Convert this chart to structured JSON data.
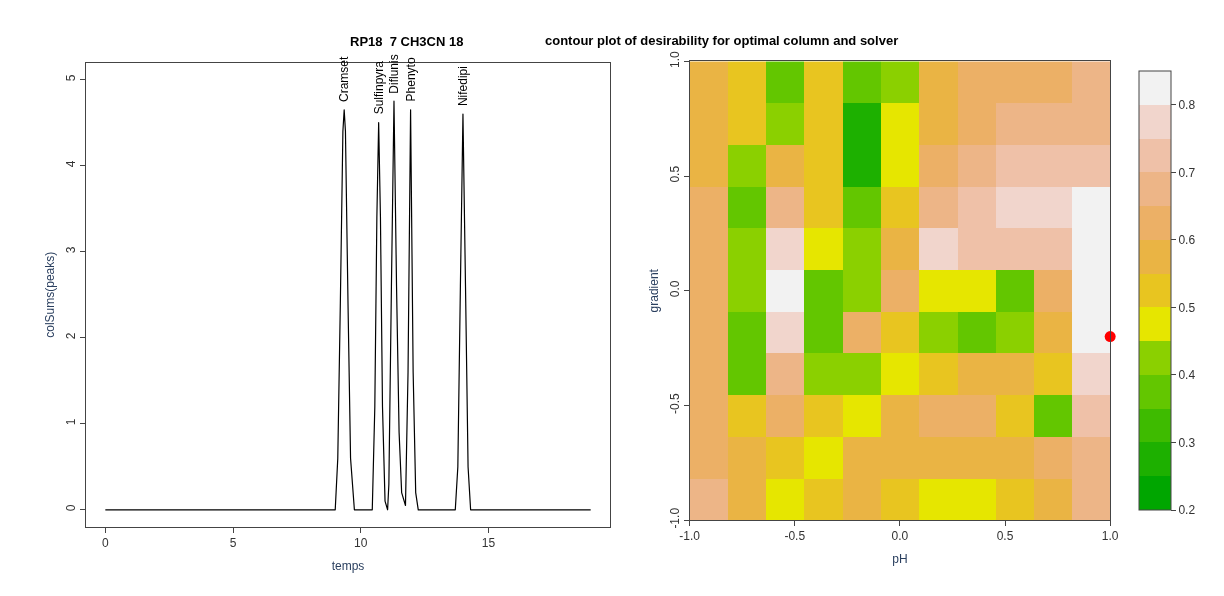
{
  "chart_data": [
    {
      "type": "line",
      "title": "RP18  7 CH3CN 18",
      "xlabel": "temps",
      "ylabel": "colSums(peaks)",
      "x": [
        0,
        9.0,
        9.1,
        9.2,
        9.3,
        9.35,
        9.4,
        9.5,
        9.6,
        9.75,
        10.45,
        10.55,
        10.63,
        10.7,
        10.77,
        10.85,
        10.95,
        11.05,
        11.1,
        11.2,
        11.3,
        11.4,
        11.5,
        11.6,
        11.75,
        11.85,
        11.95,
        12.05,
        12.15,
        12.25,
        13.7,
        13.8,
        13.9,
        14.0,
        14.1,
        14.2,
        14.3,
        19
      ],
      "values": [
        0,
        0,
        0.6,
        2.4,
        4.4,
        4.65,
        4.4,
        2.4,
        0.6,
        0,
        0,
        1.2,
        3.4,
        4.5,
        3.4,
        1.2,
        0.1,
        0,
        0.3,
        2.6,
        4.75,
        2.6,
        0.9,
        0.2,
        0.05,
        1.6,
        4.65,
        1.6,
        0.2,
        0,
        0,
        0.5,
        2.6,
        4.6,
        2.6,
        0.5,
        0,
        0
      ],
      "color": "#000000",
      "xlim": [
        -0.76,
        19.76
      ],
      "xticks": [
        0,
        5,
        10,
        15
      ],
      "ylim": [
        -0.2,
        5.2
      ],
      "yticks": [
        0,
        1,
        2,
        3,
        4,
        5
      ],
      "annotations": [
        {
          "text": "Cramset",
          "x": 9.35,
          "y": 4.65
        },
        {
          "text": "Sulfinpyra",
          "x": 10.7,
          "y": 4.5
        },
        {
          "text": "Diflunis",
          "x": 11.3,
          "y": 4.75
        },
        {
          "text": "Phenyto",
          "x": 11.95,
          "y": 4.65
        },
        {
          "text": "Nifedipi",
          "x": 14.0,
          "y": 4.6
        }
      ]
    },
    {
      "type": "heatmap",
      "title": "contour plot of desirability for optimal column and solver",
      "xlabel": "pH",
      "ylabel": "gradient",
      "x": [
        -0.909,
        -0.727,
        -0.545,
        -0.364,
        -0.182,
        0,
        0.182,
        0.364,
        0.545,
        0.727,
        0.909
      ],
      "y": [
        0.909,
        0.727,
        0.545,
        0.364,
        0.182,
        0,
        -0.182,
        -0.364,
        -0.545,
        -0.727,
        -0.909
      ],
      "cells": [
        [
          0.55,
          0.5,
          0.35,
          0.5,
          0.35,
          0.4,
          0.55,
          0.62,
          0.63,
          0.64,
          0.65
        ],
        [
          0.55,
          0.5,
          0.42,
          0.52,
          0.27,
          0.45,
          0.58,
          0.63,
          0.66,
          0.68,
          0.68
        ],
        [
          0.58,
          0.42,
          0.55,
          0.52,
          0.28,
          0.48,
          0.6,
          0.67,
          0.7,
          0.72,
          0.73
        ],
        [
          0.6,
          0.38,
          0.65,
          0.5,
          0.35,
          0.5,
          0.68,
          0.73,
          0.75,
          0.76,
          0.8
        ],
        [
          0.6,
          0.42,
          0.75,
          0.45,
          0.4,
          0.55,
          0.75,
          0.72,
          0.7,
          0.72,
          0.8
        ],
        [
          0.6,
          0.42,
          0.8,
          0.38,
          0.44,
          0.62,
          0.45,
          0.48,
          0.38,
          0.6,
          0.8
        ],
        [
          0.6,
          0.38,
          0.75,
          0.38,
          0.6,
          0.5,
          0.4,
          0.37,
          0.44,
          0.55,
          0.8
        ],
        [
          0.6,
          0.36,
          0.65,
          0.44,
          0.44,
          0.47,
          0.5,
          0.55,
          0.55,
          0.5,
          0.75
        ],
        [
          0.6,
          0.5,
          0.6,
          0.5,
          0.45,
          0.55,
          0.6,
          0.6,
          0.5,
          0.35,
          0.7
        ],
        [
          0.62,
          0.58,
          0.5,
          0.48,
          0.58,
          0.55,
          0.55,
          0.57,
          0.58,
          0.6,
          0.68
        ],
        [
          0.65,
          0.55,
          0.45,
          0.52,
          0.56,
          0.52,
          0.48,
          0.48,
          0.5,
          0.55,
          0.65
        ]
      ],
      "clim": [
        0.2,
        0.85
      ],
      "cticks": [
        0.2,
        0.3,
        0.4,
        0.5,
        0.6,
        0.7,
        0.8
      ],
      "colors": [
        "#00a600",
        "#1db000",
        "#3ebb00",
        "#63c600",
        "#8bd000",
        "#e6e600",
        "#e8c520",
        "#eab444",
        "#ecb066",
        "#edb587",
        "#efc1a8",
        "#f1d5cc",
        "#f2f2f2"
      ],
      "xlim": [
        -1,
        1
      ],
      "xticks": [
        {
          "value": -1,
          "label": "-1.0"
        },
        -0.5,
        {
          "value": 0,
          "label": "0.0"
        },
        0.5,
        {
          "value": 1,
          "label": "1.0"
        }
      ],
      "ylim": [
        -1,
        1
      ],
      "yticks": [
        {
          "value": -1,
          "label": "-1.0"
        },
        -0.5,
        {
          "value": 0,
          "label": "0.0"
        },
        0.5,
        {
          "value": 1,
          "label": "1.0"
        }
      ],
      "series": [
        {
          "type": "scatter",
          "color": "#ff0000",
          "x": [
            1
          ],
          "values": [
            -0.2
          ]
        }
      ]
    }
  ]
}
